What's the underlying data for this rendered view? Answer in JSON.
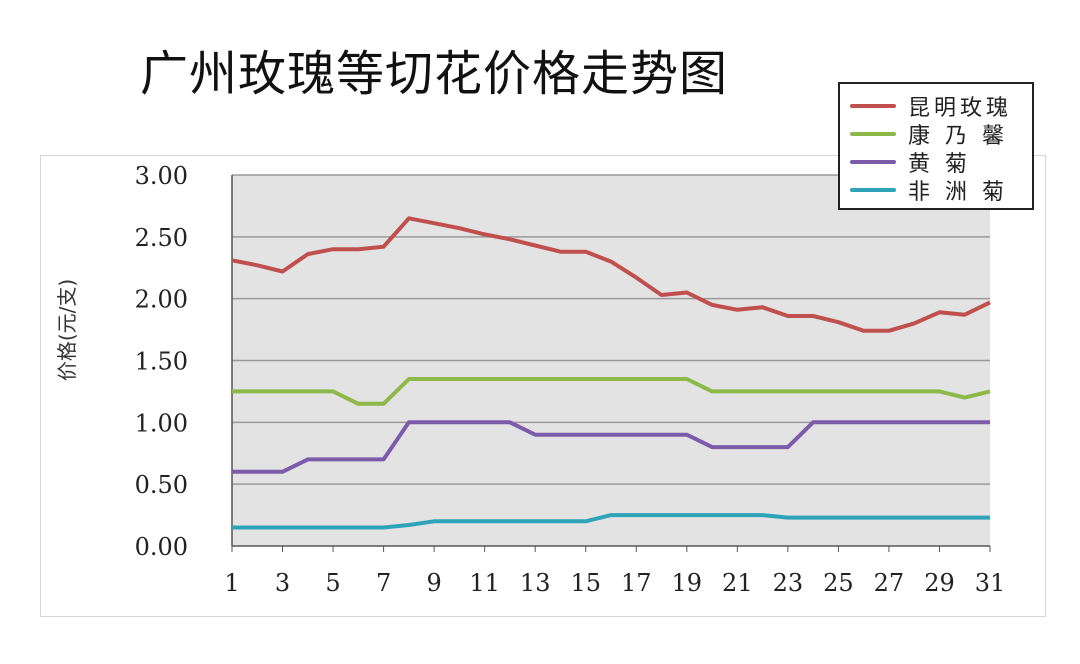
{
  "title": "广州玫瑰等切花价格走势图",
  "chart_data": {
    "type": "line",
    "title": "广州玫瑰等切花价格走势图",
    "xlabel": "",
    "ylabel": "价格(元/支)",
    "ylim": [
      0,
      3
    ],
    "xlim": [
      1,
      31
    ],
    "x": [
      1,
      2,
      3,
      4,
      5,
      6,
      7,
      8,
      9,
      10,
      11,
      12,
      13,
      14,
      15,
      16,
      17,
      18,
      19,
      20,
      21,
      22,
      23,
      24,
      25,
      26,
      27,
      28,
      29,
      30,
      31
    ],
    "x_ticks": [
      "1",
      "3",
      "5",
      "7",
      "9",
      "11",
      "13",
      "15",
      "17",
      "19",
      "21",
      "23",
      "25",
      "27",
      "29",
      "31"
    ],
    "y_ticks": [
      "0.00",
      "0.50",
      "1.00",
      "1.50",
      "2.00",
      "2.50",
      "3.00"
    ],
    "grid": true,
    "legend_position": "top-right",
    "series": [
      {
        "name": "昆明玫瑰",
        "color": "#c0504d",
        "values": [
          2.31,
          2.27,
          2.22,
          2.36,
          2.4,
          2.4,
          2.42,
          2.65,
          2.61,
          2.57,
          2.52,
          2.48,
          2.43,
          2.38,
          2.38,
          2.3,
          2.17,
          2.03,
          2.05,
          1.95,
          1.91,
          1.93,
          1.86,
          1.86,
          1.81,
          1.74,
          1.74,
          1.8,
          1.89,
          1.87,
          1.97
        ]
      },
      {
        "name": "康乃馨",
        "color": "#8db84a",
        "values": [
          1.25,
          1.25,
          1.25,
          1.25,
          1.25,
          1.15,
          1.15,
          1.35,
          1.35,
          1.35,
          1.35,
          1.35,
          1.35,
          1.35,
          1.35,
          1.35,
          1.35,
          1.35,
          1.35,
          1.25,
          1.25,
          1.25,
          1.25,
          1.25,
          1.25,
          1.25,
          1.25,
          1.25,
          1.25,
          1.2,
          1.25
        ]
      },
      {
        "name": "黄菊",
        "color": "#7d5bab",
        "values": [
          0.6,
          0.6,
          0.6,
          0.7,
          0.7,
          0.7,
          0.7,
          1.0,
          1.0,
          1.0,
          1.0,
          1.0,
          0.9,
          0.9,
          0.9,
          0.9,
          0.9,
          0.9,
          0.9,
          0.8,
          0.8,
          0.8,
          0.8,
          1.0,
          1.0,
          1.0,
          1.0,
          1.0,
          1.0,
          1.0,
          1.0
        ]
      },
      {
        "name": "非洲菊",
        "color": "#2fa3b8",
        "values": [
          0.15,
          0.15,
          0.15,
          0.15,
          0.15,
          0.15,
          0.15,
          0.17,
          0.2,
          0.2,
          0.2,
          0.2,
          0.2,
          0.2,
          0.2,
          0.25,
          0.25,
          0.25,
          0.25,
          0.25,
          0.25,
          0.25,
          0.23,
          0.23,
          0.23,
          0.23,
          0.23,
          0.23,
          0.23,
          0.23,
          0.23
        ]
      }
    ],
    "legend_labels": [
      "昆明玫瑰",
      "康 乃 馨",
      "黄    菊",
      "非 洲 菊"
    ]
  },
  "colors": {
    "plot_background": "#e3e3e3",
    "gridline": "#9a9a9a",
    "axis": "#555555"
  }
}
